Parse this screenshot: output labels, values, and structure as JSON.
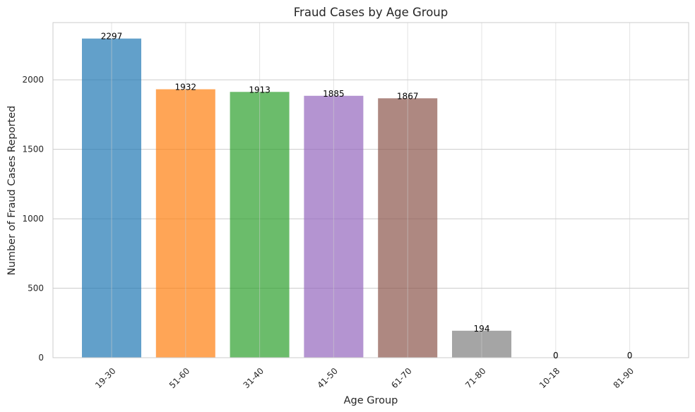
{
  "chart_data": {
    "type": "bar",
    "title": "Fraud Cases by Age Group",
    "xlabel": "Age Group",
    "ylabel": "Number of Fraud Cases Reported",
    "categories": [
      "19-30",
      "51-60",
      "31-40",
      "41-50",
      "61-70",
      "71-80",
      "10-18",
      "81-90"
    ],
    "values": [
      2297,
      1932,
      1913,
      1885,
      1867,
      194,
      0,
      0
    ],
    "data_labels": [
      "2297",
      "1932",
      "1913",
      "1885",
      "1867",
      "194",
      "0",
      "0"
    ],
    "colors": [
      "#1f77b4",
      "#ff7f0e",
      "#2ca02c",
      "#9467bd",
      "#8c564b",
      "#7f7f7f",
      "#e377c2",
      "#bcbd22"
    ],
    "bar_opacity": 0.7,
    "ylim": [
      0,
      2412
    ],
    "yticks": [
      0,
      500,
      1000,
      1500,
      2000
    ],
    "ytick_labels": [
      "0",
      "500",
      "1000",
      "1500",
      "2000"
    ],
    "grid": true,
    "x_tick_rotation": 45
  }
}
